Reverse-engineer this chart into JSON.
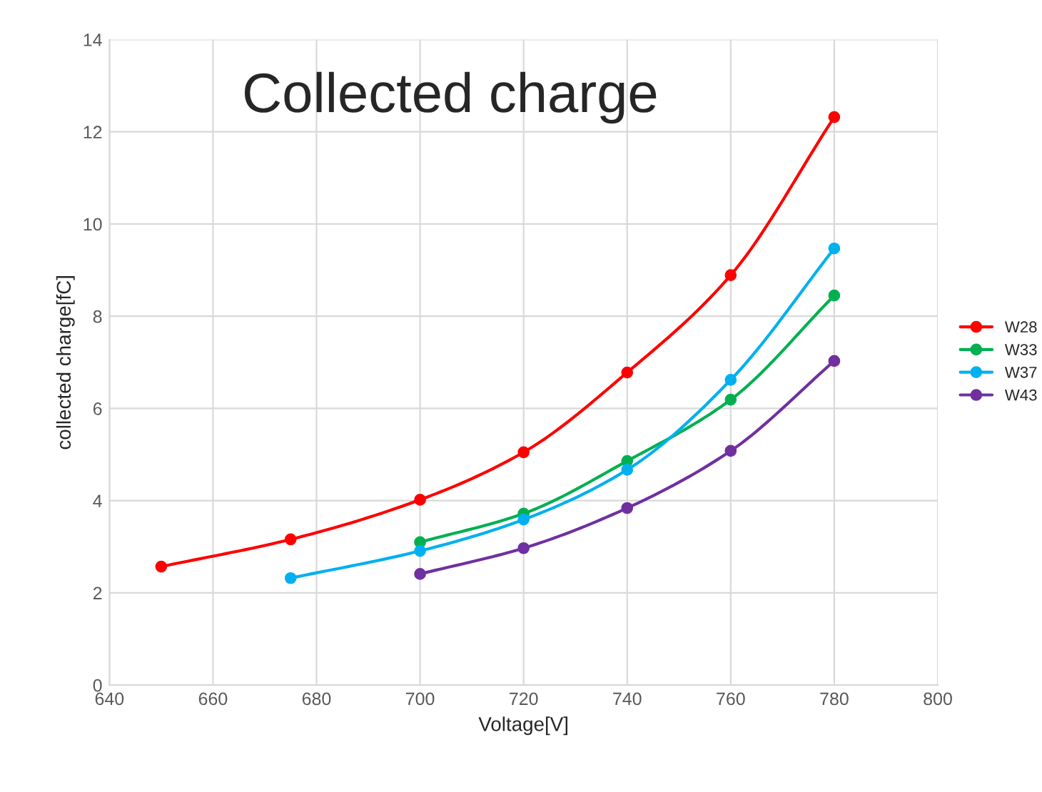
{
  "chart_data": {
    "type": "line",
    "title": "Collected charge",
    "xlabel": "Voltage[V]",
    "ylabel": "collected charge[fC]",
    "xlim": [
      640,
      800
    ],
    "xticks": [
      640,
      660,
      680,
      700,
      720,
      740,
      760,
      780,
      800
    ],
    "ylim": [
      0,
      14
    ],
    "yticks": [
      0,
      2,
      4,
      6,
      8,
      10,
      12,
      14
    ],
    "grid": true,
    "legend": "right",
    "marker": "circle",
    "line_style": "solid",
    "series": [
      {
        "name": "W28",
        "color": "#ff0000",
        "x": [
          650,
          675,
          700,
          720,
          740,
          760,
          780
        ],
        "values": [
          2.57,
          3.16,
          4.02,
          5.05,
          6.78,
          8.89,
          12.32
        ]
      },
      {
        "name": "W33",
        "color": "#00b050",
        "x": [
          700,
          720,
          740,
          760,
          780
        ],
        "values": [
          3.1,
          3.72,
          4.86,
          6.19,
          8.45
        ]
      },
      {
        "name": "W37",
        "color": "#00b0f0",
        "x": [
          675,
          700,
          720,
          740,
          760,
          780
        ],
        "values": [
          2.32,
          2.91,
          3.59,
          4.67,
          6.62,
          9.47
        ]
      },
      {
        "name": "W43",
        "color": "#7030a0",
        "x": [
          700,
          720,
          740,
          760,
          780
        ],
        "values": [
          2.41,
          2.97,
          3.84,
          5.08,
          7.03
        ]
      }
    ]
  }
}
